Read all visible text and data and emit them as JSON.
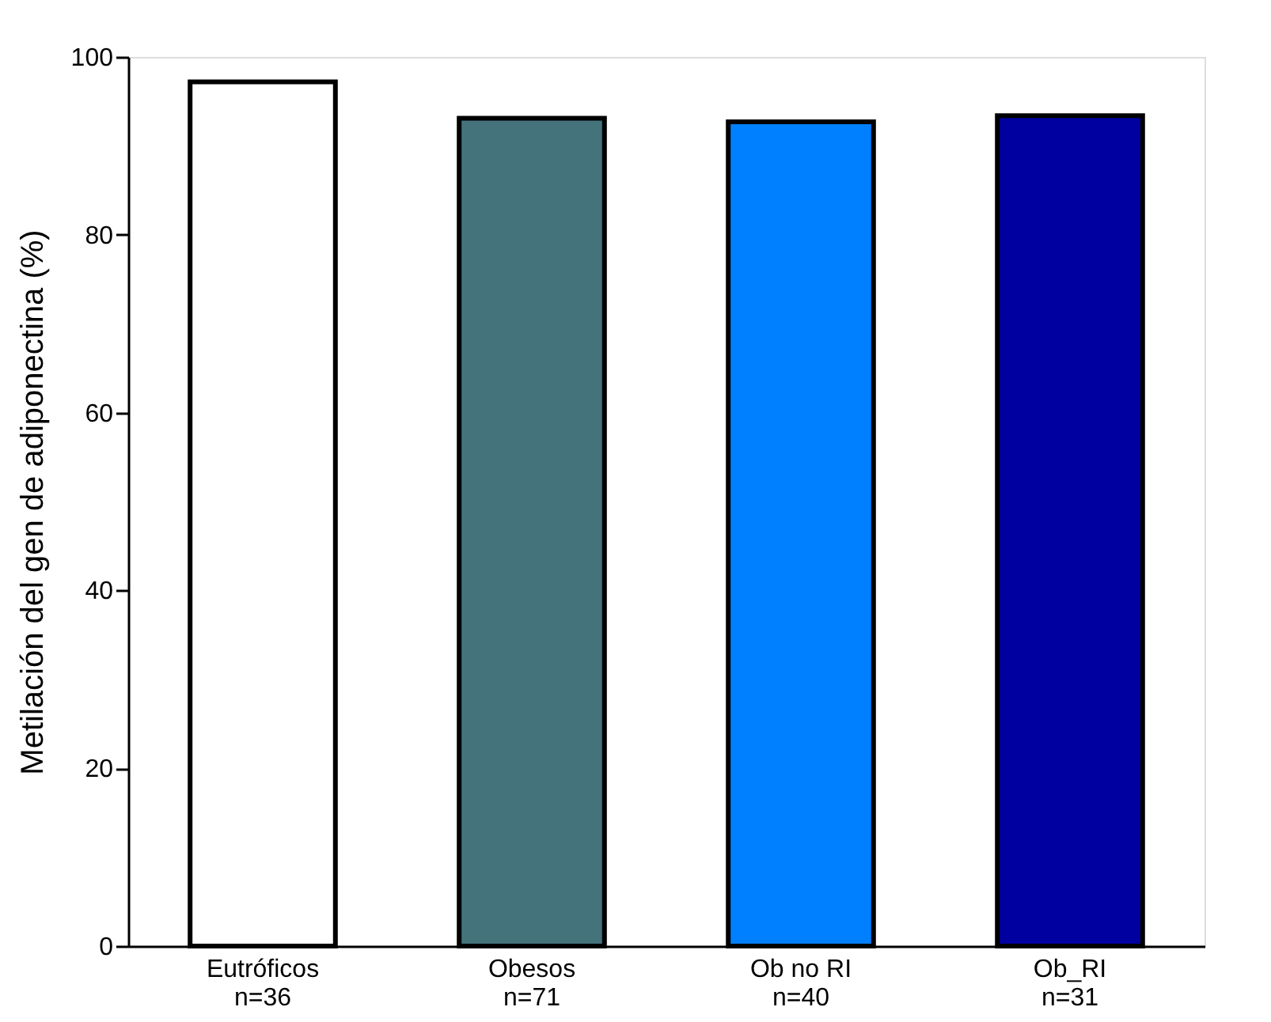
{
  "chart_data": {
    "type": "bar",
    "ylabel": "Metilación del gen de adiponectina (%)",
    "categories": [
      "Eutróficos\nn=36",
      "Obesos\nn=71",
      "Ob no RI\nn=40",
      "Ob_RI\nn=31"
    ],
    "values": [
      97.2,
      93.1,
      92.7,
      93.4
    ],
    "colors": [
      "#ffffff",
      "#44737c",
      "#0080ff",
      "#0000a0"
    ],
    "ylim": [
      0,
      100
    ],
    "yticks": [
      0,
      20,
      40,
      60,
      80,
      100
    ],
    "grid": false,
    "legend": false
  }
}
